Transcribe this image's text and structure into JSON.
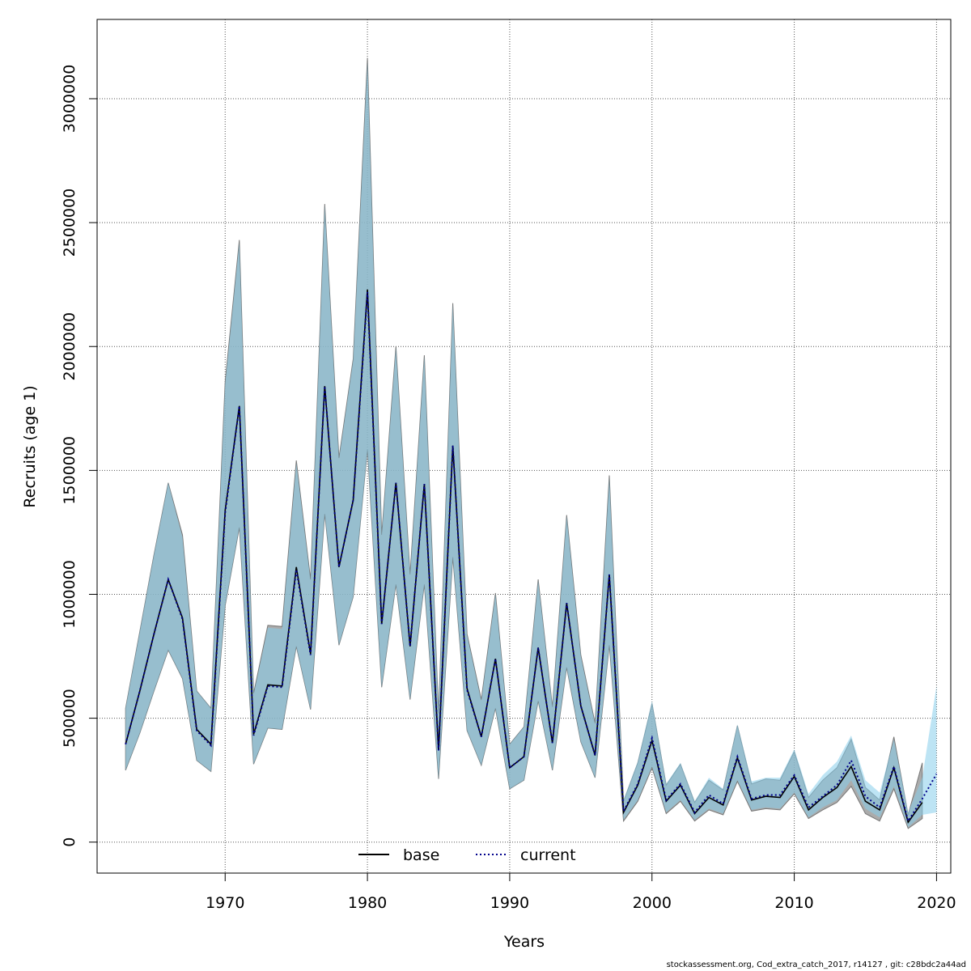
{
  "chart_data": {
    "type": "line",
    "xlabel": "Years",
    "ylabel": "Recruits (age 1)",
    "xlim": [
      1961,
      2021
    ],
    "ylim": [
      -125000,
      3320000
    ],
    "xticks": [
      1970,
      1980,
      1990,
      2000,
      2010,
      2020
    ],
    "yticks": [
      0,
      500000,
      1000000,
      1500000,
      2000000,
      2500000,
      3000000
    ],
    "grid": true,
    "legend_position": "bottom-center",
    "colors": {
      "base_band": "#8f8f8f",
      "current_band": "#87ceeb",
      "base_line": "#000000",
      "current_line": "#00008b"
    },
    "series": [
      {
        "name": "base",
        "line_style": "solid",
        "x": [
          1963,
          1964,
          1965,
          1966,
          1967,
          1968,
          1969,
          1970,
          1971,
          1972,
          1973,
          1974,
          1975,
          1976,
          1977,
          1978,
          1979,
          1980,
          1981,
          1982,
          1983,
          1984,
          1985,
          1986,
          1987,
          1988,
          1989,
          1990,
          1991,
          1992,
          1993,
          1994,
          1995,
          1996,
          1997,
          1998,
          1999,
          2000,
          2001,
          2002,
          2003,
          2004,
          2005,
          2006,
          2007,
          2008,
          2009,
          2010,
          2011,
          2012,
          2013,
          2014,
          2015,
          2016,
          2017,
          2018,
          2019
        ],
        "y": [
          395000,
          610000,
          840000,
          1060000,
          905000,
          455000,
          395000,
          1340000,
          1760000,
          435000,
          635000,
          630000,
          1110000,
          760000,
          1840000,
          1110000,
          1380000,
          2230000,
          880000,
          1450000,
          790000,
          1445000,
          370000,
          1600000,
          620000,
          425000,
          740000,
          300000,
          345000,
          785000,
          400000,
          965000,
          550000,
          350000,
          1080000,
          120000,
          230000,
          410000,
          165000,
          230000,
          115000,
          180000,
          150000,
          340000,
          170000,
          185000,
          180000,
          265000,
          130000,
          180000,
          220000,
          305000,
          165000,
          130000,
          300000,
          80000,
          160000
        ],
        "lower": [
          290000,
          440000,
          610000,
          775000,
          660000,
          330000,
          285000,
          955000,
          1270000,
          315000,
          460000,
          455000,
          790000,
          535000,
          1325000,
          795000,
          990000,
          1585000,
          625000,
          1040000,
          575000,
          1040000,
          255000,
          1150000,
          450000,
          310000,
          540000,
          215000,
          250000,
          570000,
          290000,
          705000,
          405000,
          260000,
          795000,
          85000,
          165000,
          300000,
          115000,
          165000,
          85000,
          130000,
          110000,
          245000,
          125000,
          135000,
          130000,
          195000,
          95000,
          130000,
          160000,
          225000,
          115000,
          85000,
          215000,
          55000,
          95000
        ],
        "upper": [
          540000,
          850000,
          1160000,
          1450000,
          1240000,
          610000,
          540000,
          1860000,
          2430000,
          600000,
          875000,
          870000,
          1540000,
          1060000,
          2575000,
          1550000,
          1950000,
          3165000,
          1240000,
          2000000,
          1080000,
          1965000,
          520000,
          2175000,
          840000,
          575000,
          1005000,
          395000,
          465000,
          1060000,
          545000,
          1320000,
          755000,
          480000,
          1480000,
          165000,
          320000,
          560000,
          230000,
          315000,
          160000,
          250000,
          210000,
          470000,
          235000,
          255000,
          250000,
          365000,
          180000,
          250000,
          300000,
          415000,
          220000,
          170000,
          425000,
          110000,
          320000
        ]
      },
      {
        "name": "current",
        "line_style": "dotted",
        "x": [
          1963,
          1964,
          1965,
          1966,
          1967,
          1968,
          1969,
          1970,
          1971,
          1972,
          1973,
          1974,
          1975,
          1976,
          1977,
          1978,
          1979,
          1980,
          1981,
          1982,
          1983,
          1984,
          1985,
          1986,
          1987,
          1988,
          1989,
          1990,
          1991,
          1992,
          1993,
          1994,
          1995,
          1996,
          1997,
          1998,
          1999,
          2000,
          2001,
          2002,
          2003,
          2004,
          2005,
          2006,
          2007,
          2008,
          2009,
          2010,
          2011,
          2012,
          2013,
          2014,
          2015,
          2016,
          2017,
          2018,
          2019,
          2020
        ],
        "y": [
          395000,
          610000,
          840000,
          1060000,
          900000,
          450000,
          390000,
          1330000,
          1760000,
          430000,
          630000,
          625000,
          1100000,
          755000,
          1840000,
          1110000,
          1380000,
          2220000,
          880000,
          1450000,
          790000,
          1445000,
          370000,
          1600000,
          615000,
          425000,
          740000,
          300000,
          345000,
          785000,
          400000,
          965000,
          550000,
          350000,
          1080000,
          125000,
          235000,
          420000,
          170000,
          235000,
          120000,
          190000,
          155000,
          345000,
          175000,
          190000,
          190000,
          270000,
          140000,
          185000,
          230000,
          330000,
          185000,
          140000,
          305000,
          85000,
          175000,
          275000
        ],
        "lower": [
          290000,
          440000,
          610000,
          775000,
          660000,
          330000,
          285000,
          955000,
          1270000,
          315000,
          460000,
          455000,
          790000,
          535000,
          1325000,
          795000,
          990000,
          1580000,
          625000,
          1040000,
          575000,
          1040000,
          255000,
          1150000,
          450000,
          310000,
          540000,
          215000,
          250000,
          570000,
          290000,
          705000,
          405000,
          260000,
          795000,
          90000,
          170000,
          305000,
          120000,
          170000,
          90000,
          135000,
          115000,
          250000,
          130000,
          140000,
          135000,
          200000,
          100000,
          140000,
          170000,
          250000,
          135000,
          100000,
          225000,
          60000,
          110000,
          120000
        ],
        "upper": [
          540000,
          850000,
          1160000,
          1450000,
          1230000,
          610000,
          540000,
          1850000,
          2420000,
          595000,
          865000,
          860000,
          1530000,
          1055000,
          2570000,
          1545000,
          1945000,
          3150000,
          1235000,
          1995000,
          1075000,
          1960000,
          515000,
          2170000,
          835000,
          570000,
          1000000,
          395000,
          465000,
          1055000,
          545000,
          1315000,
          750000,
          475000,
          1470000,
          170000,
          325000,
          570000,
          235000,
          320000,
          165000,
          260000,
          215000,
          475000,
          245000,
          260000,
          260000,
          375000,
          195000,
          270000,
          325000,
          430000,
          250000,
          200000,
          415000,
          120000,
          260000,
          630000
        ]
      }
    ],
    "footer": "stockassessment.org, Cod_extra_catch_2017, r14127 , git: c28bdc2a44ad"
  }
}
